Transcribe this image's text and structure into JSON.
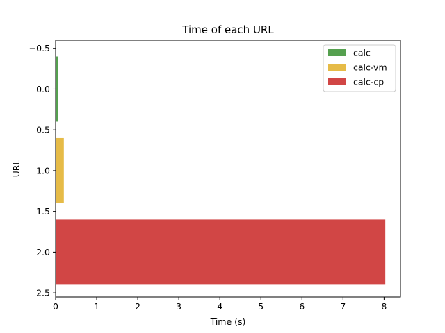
{
  "chart_data": {
    "type": "bar",
    "orientation": "horizontal",
    "title": "Time of each URL",
    "xlabel": "Time (s)",
    "ylabel": "URL",
    "xlim": [
      0,
      8.4
    ],
    "ylim": [
      2.55,
      -0.6
    ],
    "y_inverted": true,
    "xticks": [
      0,
      1,
      2,
      3,
      4,
      5,
      6,
      7,
      8
    ],
    "yticks": [
      -0.5,
      0.0,
      0.5,
      1.0,
      1.5,
      2.0,
      2.5
    ],
    "ytick_labels": [
      "−0.5",
      "0.0",
      "0.5",
      "1.0",
      "1.5",
      "2.0",
      "2.5"
    ],
    "grid": false,
    "legend_position": "top-right",
    "series": [
      {
        "name": "calc",
        "position": 0,
        "value": 0.06,
        "color": "#55a04f"
      },
      {
        "name": "calc-vm",
        "position": 1,
        "value": 0.2,
        "color": "#e6bb47"
      },
      {
        "name": "calc-cp",
        "position": 2,
        "value": 8.03,
        "color": "#d14645"
      }
    ]
  }
}
